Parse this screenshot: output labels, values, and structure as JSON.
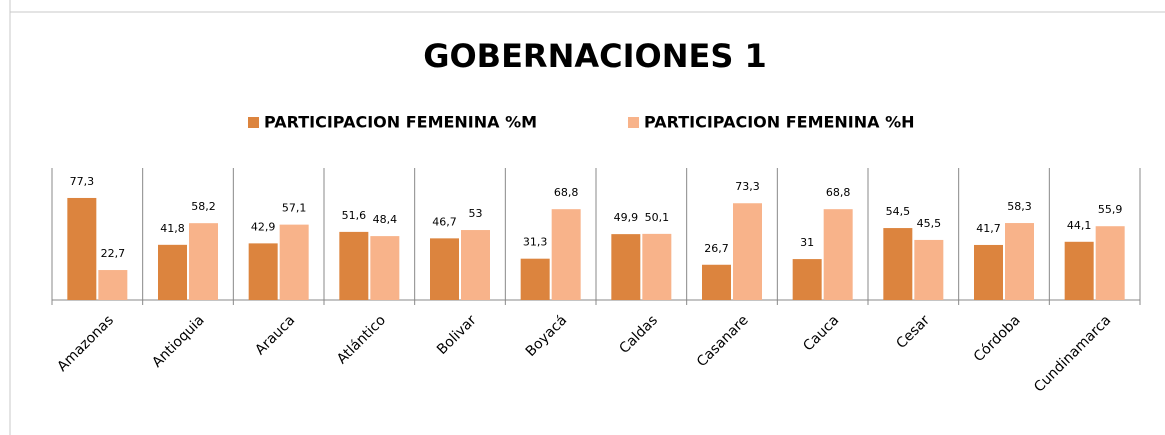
{
  "chart_data": {
    "type": "bar",
    "title": "GOBERNACIONES 1",
    "categories": [
      "Amazonas",
      "Antioquia",
      "Arauca",
      "Atlántico",
      "Bolivar",
      "Boyacá",
      "Caldas",
      "Casanare",
      "Cauca",
      "Cesar",
      "Córdoba",
      "Cundinamarca"
    ],
    "series": [
      {
        "name": "PARTICIPACION FEMENINA %M",
        "color": "#dc843e",
        "values": [
          77.3,
          41.8,
          42.9,
          51.6,
          46.7,
          31.3,
          49.9,
          26.7,
          31,
          54.5,
          41.7,
          44.1
        ],
        "value_labels": [
          "77,3",
          "41,8",
          "42,9",
          "51,6",
          "46,7",
          "31,3",
          "49,9",
          "26,7",
          "31",
          "54,5",
          "41,7",
          "44,1"
        ]
      },
      {
        "name": "PARTICIPACION FEMENINA %H",
        "color": "#f8b38a",
        "values": [
          22.7,
          58.2,
          57.1,
          48.4,
          53,
          68.8,
          50.1,
          73.3,
          68.8,
          45.5,
          58.3,
          55.9
        ],
        "value_labels": [
          "22,7",
          "58,2",
          "57,1",
          "48,4",
          "53",
          "68,8",
          "50,1",
          "73,3",
          "68,8",
          "45,5",
          "58,3",
          "55,9"
        ]
      }
    ],
    "ylim": [
      0,
      100
    ],
    "legend": "top"
  }
}
